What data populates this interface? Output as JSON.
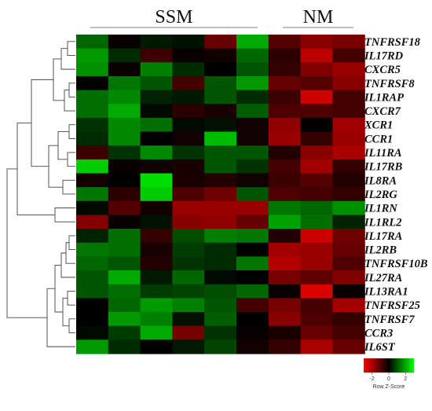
{
  "chart_data": {
    "type": "heatmap",
    "column_groups": [
      {
        "label": "SSM",
        "columns": 6
      },
      {
        "label": "NM",
        "columns": 3
      }
    ],
    "rows": [
      "TNFRSF18",
      "IL17RD",
      "CXCR5",
      "TNFRSF8",
      "IL1RAP",
      "CXCR7",
      "XCR1",
      "CCR1",
      "IL11RA",
      "IL17RB",
      "IL8RA",
      "IL2RG",
      "IL1RN",
      "IL1RL2",
      "IL17RA",
      "IL2RB",
      "TNFRSF10B",
      "IL27RA",
      "IL13RA1",
      "TNFRSF25",
      "TNFRSF7",
      "CCR3",
      "IL6ST"
    ],
    "values": [
      [
        1.2,
        -0.1,
        0.3,
        0.2,
        -1.2,
        2.0,
        -1.0,
        -1.6,
        -1.4
      ],
      [
        1.8,
        0.5,
        -0.7,
        -0.1,
        -0.2,
        1.2,
        -0.5,
        -2.2,
        -0.8
      ],
      [
        1.7,
        -0.1,
        1.5,
        0.5,
        0.0,
        1.0,
        -0.6,
        -1.5,
        -1.8
      ],
      [
        0.0,
        1.4,
        1.0,
        -0.8,
        1.0,
        1.8,
        -1.2,
        -1.0,
        -1.6
      ],
      [
        1.3,
        1.6,
        0.4,
        0.3,
        1.0,
        0.5,
        -0.7,
        -2.4,
        -0.8
      ],
      [
        1.3,
        2.0,
        0.1,
        -0.5,
        -0.3,
        1.1,
        -0.9,
        -0.9,
        -0.8
      ],
      [
        0.6,
        1.6,
        1.3,
        0.1,
        0.2,
        -0.2,
        -1.7,
        0.0,
        -1.9
      ],
      [
        0.5,
        1.6,
        0.0,
        -0.2,
        2.2,
        -0.2,
        -1.8,
        -0.6,
        -1.8
      ],
      [
        -0.7,
        0.6,
        1.6,
        0.6,
        1.0,
        1.0,
        -0.4,
        -1.6,
        -2.0
      ],
      [
        2.4,
        -0.1,
        -0.2,
        -0.3,
        1.0,
        0.6,
        -0.8,
        -1.9,
        -0.6
      ],
      [
        -0.2,
        0.0,
        2.6,
        -0.3,
        -0.4,
        -0.2,
        -0.7,
        -1.0,
        -0.4
      ],
      [
        1.4,
        -0.5,
        2.4,
        -0.9,
        -1.3,
        1.0,
        -0.9,
        -0.8,
        -0.6
      ],
      [
        0.1,
        -1.0,
        -0.2,
        -1.8,
        -1.8,
        -1.8,
        1.4,
        1.2,
        1.7
      ],
      [
        -1.5,
        -0.1,
        0.2,
        -1.6,
        -1.7,
        -1.2,
        1.9,
        1.3,
        0.4
      ],
      [
        0.4,
        1.3,
        -0.6,
        0.9,
        1.5,
        1.4,
        -0.4,
        -2.4,
        -1.3
      ],
      [
        1.4,
        1.3,
        -0.3,
        0.7,
        0.5,
        0.0,
        -1.9,
        -1.8,
        -1.2
      ],
      [
        1.2,
        1.0,
        -0.4,
        0.6,
        0.5,
        1.4,
        -2.1,
        -1.8,
        -0.9
      ],
      [
        1.0,
        2.0,
        0.3,
        1.2,
        0.1,
        0.0,
        -1.4,
        -1.1,
        -1.5
      ],
      [
        1.0,
        1.3,
        0.7,
        0.8,
        0.9,
        1.2,
        -0.1,
        -2.6,
        -0.1
      ],
      [
        0.0,
        1.2,
        1.8,
        1.5,
        1.0,
        -0.8,
        -1.4,
        -0.8,
        -1.9
      ],
      [
        0.0,
        1.8,
        1.5,
        0.2,
        1.1,
        0.0,
        -1.6,
        -0.9,
        -0.6
      ],
      [
        0.1,
        0.7,
        2.0,
        -1.4,
        0.6,
        -0.1,
        -0.3,
        -1.2,
        -0.8
      ],
      [
        1.8,
        0.5,
        0.0,
        0.3,
        0.8,
        -0.2,
        -0.6,
        -2.0,
        -1.2
      ]
    ],
    "color_scale": {
      "low": "#ff0000",
      "mid": "#000000",
      "high": "#00ff00",
      "min": -3,
      "max": 3
    },
    "legend": {
      "label": "Row Z-Score",
      "ticks": [
        "-2",
        "0",
        "2"
      ],
      "ticks_values": [
        -2,
        0,
        2
      ]
    }
  }
}
